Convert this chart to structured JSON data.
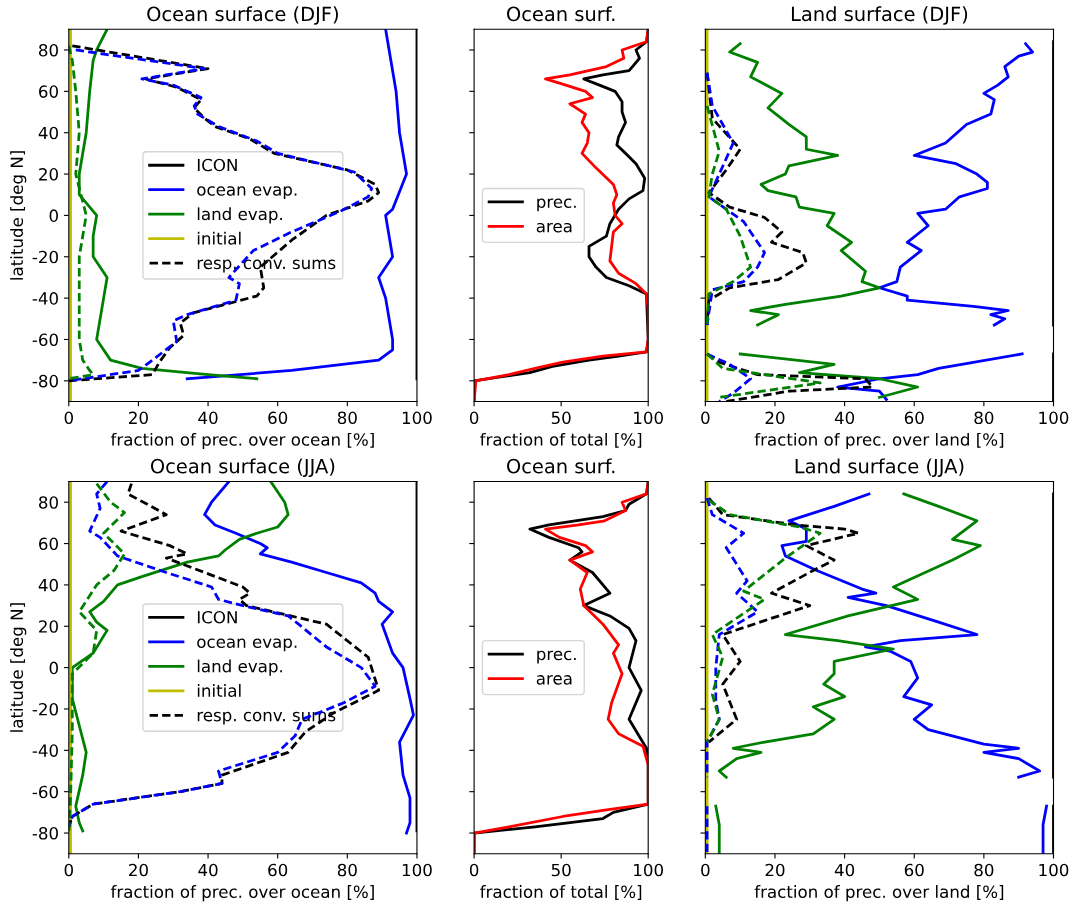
{
  "chart_data": [
    {
      "type": "line",
      "orientation": "horizontal",
      "title": "Ocean surface (DJF)",
      "xlabel": "fraction of prec. over ocean [%]",
      "ylabel": "latitude [deg N]",
      "xlim": [
        0,
        100
      ],
      "xticks": [
        0,
        20,
        40,
        60,
        80,
        100
      ],
      "ylim": [
        -90,
        90
      ],
      "yticks": [
        -80,
        -60,
        -40,
        -20,
        0,
        20,
        40,
        60,
        80
      ],
      "legend": "center",
      "series": [
        {
          "name": "ICON",
          "color": "#000000",
          "line_style": "solid",
          "x": [
            90,
            -79
          ],
          "values": [
            100,
            100
          ]
        },
        {
          "name": "ocean evap.",
          "color": "#0000ff",
          "line_style": "solid",
          "x": [
            90,
            80,
            60,
            40,
            20,
            3,
            0,
            -20,
            -30,
            -40,
            -50,
            -60,
            -65,
            -70,
            -75,
            -79
          ],
          "values": [
            91,
            92,
            94,
            95,
            97,
            93,
            91,
            93,
            89,
            91,
            92,
            93,
            93,
            89,
            64,
            34
          ]
        },
        {
          "name": "land evap.",
          "color": "#008000",
          "line_style": "solid",
          "x": [
            90,
            80,
            75,
            60,
            40,
            20,
            10,
            0,
            -10,
            -20,
            -30,
            -40,
            -60,
            -70,
            -74,
            -77,
            -79
          ],
          "values": [
            11,
            8,
            7,
            6,
            5,
            3,
            3,
            8,
            7,
            7,
            11,
            10,
            8,
            12,
            21,
            40,
            54
          ]
        },
        {
          "name": "initial",
          "color": "#bfbf00",
          "line_style": "solid",
          "x": [
            90,
            -90
          ],
          "values": [
            0.5,
            0.5
          ]
        },
        {
          "name": "resp. conv. sums",
          "color": "#000000",
          "line_style": "dashed",
          "x": [
            82,
            71,
            66,
            62,
            56,
            52,
            47,
            43,
            37,
            30,
            22,
            15,
            11,
            7,
            0,
            -12,
            -25,
            -35,
            -39,
            -47,
            -52,
            -58,
            -64,
            -71,
            -77,
            -80
          ],
          "values": [
            1,
            40,
            22,
            31,
            38,
            36,
            39,
            42,
            52,
            59,
            80,
            88,
            89,
            86,
            74,
            64,
            55,
            56,
            54,
            36,
            32,
            33,
            29,
            26,
            24,
            0
          ]
        },
        {
          "color": "#0000ff",
          "line_style": "dashed",
          "x": [
            80,
            71,
            66,
            63,
            57,
            53,
            49,
            43,
            36,
            30,
            21,
            13,
            9,
            2,
            -8,
            -17,
            -30,
            -33,
            -41,
            -48,
            -51,
            -61,
            -70,
            -75,
            -80
          ],
          "values": [
            2,
            39,
            21,
            30,
            38,
            36,
            37,
            43,
            54,
            60,
            82,
            87,
            86,
            78,
            64,
            53,
            46,
            49,
            48,
            34,
            30,
            31,
            24,
            20,
            0
          ]
        },
        {
          "color": "#008000",
          "line_style": "dashed",
          "x": [
            82,
            75,
            60,
            40,
            20,
            0,
            -20,
            -40,
            -60,
            -70,
            -75,
            -77,
            -79
          ],
          "values": [
            0,
            1,
            2,
            3,
            2,
            5,
            3,
            3,
            3,
            4,
            6,
            7,
            0
          ]
        }
      ]
    },
    {
      "type": "line",
      "orientation": "horizontal",
      "title": "Ocean surf.",
      "xlabel": "fraction of total [%]",
      "xlim": [
        0,
        100
      ],
      "xticks": [
        0,
        50,
        100
      ],
      "ylim": [
        -90,
        90
      ],
      "yticks": [
        -80,
        -60,
        -40,
        -20,
        0,
        20,
        40,
        60,
        80
      ],
      "tick_labels": "x",
      "legend": "center left",
      "series": [
        {
          "name": "prec.",
          "color": "#000000",
          "line_style": "solid",
          "x": [
            90,
            84,
            80,
            76,
            72,
            70,
            68,
            66,
            63,
            60,
            55,
            50,
            45,
            38,
            34,
            30,
            25,
            18,
            12,
            8,
            3,
            -4,
            -10,
            -15,
            -20,
            -25,
            -30,
            -34,
            -38,
            -60,
            -66,
            -68,
            -70,
            -73,
            -76,
            -78,
            -80,
            -90
          ],
          "values": [
            100,
            99,
            93,
            95,
            91,
            89,
            74,
            63,
            72,
            81,
            85,
            85,
            87,
            83,
            82,
            87,
            93,
            98,
            97,
            89,
            83,
            78,
            76,
            66,
            66,
            70,
            76,
            89,
            99,
            100,
            99,
            83,
            66,
            45,
            32,
            16,
            0,
            0
          ]
        },
        {
          "name": "area",
          "color": "#ff0000",
          "line_style": "solid",
          "x": [
            90,
            84,
            80,
            76,
            72,
            68,
            66,
            64,
            60,
            57,
            54,
            49,
            45,
            40,
            35,
            30,
            23,
            15,
            10,
            6,
            0,
            -4,
            -8,
            -15,
            -22,
            -28,
            -33,
            -38,
            -45,
            -60,
            -66,
            -68,
            -71,
            -74,
            -77,
            -80,
            -90
          ],
          "values": [
            100,
            99,
            85,
            86,
            76,
            55,
            41,
            49,
            64,
            68,
            55,
            64,
            62,
            66,
            65,
            62,
            70,
            80,
            82,
            80,
            81,
            85,
            80,
            79,
            78,
            83,
            93,
            99,
            100,
            100,
            99,
            74,
            51,
            35,
            20,
            1,
            0
          ]
        }
      ]
    },
    {
      "type": "line",
      "orientation": "horizontal",
      "title": "Land surface (DJF)",
      "xlabel": "fraction of prec. over land [%]",
      "xlim": [
        0,
        100
      ],
      "xticks": [
        0,
        20,
        40,
        60,
        80,
        100
      ],
      "ylim": [
        -90,
        90
      ],
      "yticks": [
        -80,
        -60,
        -40,
        -20,
        0,
        20,
        40,
        60,
        80
      ],
      "tick_labels": "x",
      "series": [
        {
          "color": "#000000",
          "line_style": "solid",
          "x": [
            84,
            -53,
            -60,
            -67,
            -90
          ],
          "values": [
            100,
            100,
            null,
            100,
            100
          ]
        },
        {
          "color": "#0000ff",
          "line_style": "solid",
          "x": [
            83,
            79,
            77,
            72,
            67,
            63,
            59,
            56,
            49,
            44,
            35,
            29,
            25,
            20,
            16,
            13,
            9,
            3,
            1,
            -5,
            -13,
            -17,
            -25,
            -32,
            -35,
            -39,
            -41,
            -44,
            -46,
            -48,
            -50,
            -53,
            -60,
            -67,
            -74,
            -77,
            -79,
            -83,
            -85,
            -89
          ],
          "values": [
            92,
            94,
            90,
            86,
            87,
            84,
            80,
            83,
            82,
            75,
            69,
            60,
            72,
            78,
            81,
            81,
            73,
            69,
            61,
            64,
            58,
            62,
            56,
            55,
            50,
            58,
            58,
            77,
            87,
            82,
            86,
            83,
            null,
            91,
            67,
            61,
            50,
            38,
            50,
            52
          ]
        },
        {
          "color": "#008000",
          "line_style": "solid",
          "x": [
            83,
            79,
            74,
            67,
            59,
            52,
            44,
            38,
            32,
            29,
            24,
            20,
            15,
            12,
            9,
            4,
            1,
            -5,
            -13,
            -17,
            -27,
            -32,
            -35,
            -39,
            -43,
            -46,
            -48,
            -53,
            -60,
            -67,
            -72,
            -76,
            -79,
            -83,
            -88
          ],
          "values": [
            10,
            7,
            15,
            13,
            22,
            18,
            24,
            29,
            29,
            38,
            24,
            23,
            16,
            18,
            26,
            27,
            37,
            35,
            42,
            39,
            46,
            45,
            50,
            39,
            23,
            13,
            21,
            15,
            null,
            10,
            37,
            27,
            50,
            61,
            50
          ]
        },
        {
          "color": "#bfbf00",
          "line_style": "solid",
          "x": [
            90,
            -90
          ],
          "values": [
            0.5,
            0.5
          ]
        },
        {
          "color": "#000000",
          "line_style": "dashed",
          "x": [
            69,
            47,
            32,
            22,
            11,
            4,
            -1,
            -8,
            -13,
            -18,
            -23,
            -31,
            -35,
            -41,
            -53,
            -60,
            -67,
            -71,
            -77,
            -79,
            -83,
            -85,
            -90
          ],
          "values": [
            0.5,
            2,
            10,
            6,
            1,
            7,
            17,
            22,
            19,
            28,
            29,
            21,
            7,
            1,
            0.5,
            null,
            0.5,
            4,
            15,
            46,
            48,
            24,
            6
          ]
        },
        {
          "color": "#0000ff",
          "line_style": "dashed",
          "x": [
            69,
            53,
            35,
            20,
            9,
            -3,
            -8,
            -18,
            -25,
            -32,
            -36,
            -53,
            -60,
            -67,
            -72,
            -79,
            -86,
            -90
          ],
          "values": [
            0.5,
            2,
            8,
            4,
            1,
            11,
            13,
            17,
            15,
            11,
            2,
            0.5,
            null,
            0.5,
            7,
            13,
            8,
            4
          ]
        },
        {
          "color": "#008000",
          "line_style": "dashed",
          "x": [
            53,
            31,
            20,
            9,
            3,
            -10,
            -25,
            -32,
            -38,
            -53,
            -60,
            -67,
            -74,
            -81,
            -88
          ],
          "values": [
            0.5,
            4,
            2,
            1,
            6,
            10,
            13,
            8,
            1,
            0.5,
            null,
            0.5,
            5,
            33,
            4
          ]
        }
      ]
    },
    {
      "type": "line",
      "orientation": "horizontal",
      "title": "Ocean surface (JJA)",
      "xlabel": "fraction of prec. over ocean [%]",
      "ylabel": "latitude [deg N]",
      "xlim": [
        0,
        100
      ],
      "xticks": [
        0,
        20,
        40,
        60,
        80,
        100
      ],
      "ylim": [
        -90,
        90
      ],
      "yticks": [
        -80,
        -60,
        -40,
        -20,
        0,
        20,
        40,
        60,
        80
      ],
      "legend": "center",
      "series": [
        {
          "name": "ICON",
          "color": "#000000",
          "line_style": "solid",
          "x": [
            90,
            -79
          ],
          "values": [
            100,
            100
          ]
        },
        {
          "name": "ocean evap.",
          "color": "#0000ff",
          "line_style": "solid",
          "x": [
            90,
            80,
            74,
            69,
            65,
            60,
            58,
            55,
            51,
            46,
            41,
            36,
            32,
            27,
            21,
            7,
            0,
            -15,
            -23,
            -36,
            -52,
            -63,
            -75,
            -80
          ],
          "values": [
            46,
            41,
            39,
            42,
            48,
            55,
            57,
            55,
            64,
            74,
            84,
            88,
            89,
            93,
            90,
            93,
            96,
            98,
            99,
            95,
            96,
            98,
            98,
            97
          ]
        },
        {
          "name": "land evap.",
          "color": "#008000",
          "line_style": "solid",
          "x": [
            90,
            80,
            74,
            68,
            65,
            62,
            57,
            54,
            51,
            44,
            40,
            32,
            27,
            22,
            18,
            7,
            0,
            -15,
            -28,
            -41,
            -52,
            -67,
            -75,
            -79
          ],
          "values": [
            58,
            62,
            63,
            60,
            54,
            49,
            45,
            43,
            34,
            21,
            14,
            10,
            6,
            8,
            11,
            7,
            1,
            1,
            3,
            5,
            4,
            2,
            3,
            4
          ]
        },
        {
          "name": "initial",
          "color": "#bfbf00",
          "line_style": "solid",
          "x": [
            90,
            -90
          ],
          "values": [
            0.5,
            0.5
          ]
        },
        {
          "name": "resp. conv. sums",
          "color": "#000000",
          "line_style": "dashed",
          "x": [
            89,
            84,
            74,
            66,
            59,
            55,
            53,
            46,
            39,
            36,
            33,
            30,
            21,
            5,
            -11,
            -22,
            -31,
            -41,
            -52,
            -56,
            -60,
            -66,
            -72,
            -77
          ],
          "values": [
            18,
            17,
            28,
            15,
            29,
            34,
            28,
            39,
            50,
            52,
            49,
            51,
            74,
            86,
            89,
            76,
            68,
            63,
            44,
            44,
            32,
            7,
            1,
            0
          ]
        },
        {
          "color": "#0000ff",
          "line_style": "dashed",
          "x": [
            90,
            84,
            77,
            66,
            63,
            54,
            46,
            39,
            33,
            30,
            25,
            21,
            10,
            0,
            -9,
            -17,
            -25,
            -33,
            -41,
            -50,
            -56,
            -60,
            -66,
            -72,
            -77
          ],
          "values": [
            11,
            8,
            9,
            6,
            9,
            14,
            28,
            41,
            43,
            50,
            63,
            66,
            74,
            84,
            88,
            79,
            67,
            65,
            60,
            43,
            44,
            32,
            7,
            1,
            0
          ]
        },
        {
          "color": "#008000",
          "line_style": "dashed",
          "x": [
            89,
            80,
            75,
            65,
            55,
            47,
            40,
            27,
            18,
            7,
            -3,
            -31,
            -63,
            -80
          ],
          "values": [
            8,
            12,
            16,
            10,
            16,
            13,
            8,
            3,
            8,
            7,
            1,
            1,
            0.5,
            0
          ]
        }
      ]
    },
    {
      "type": "line",
      "orientation": "horizontal",
      "title": "Ocean surf.",
      "xlabel": "fraction of total [%]",
      "xlim": [
        0,
        100
      ],
      "xticks": [
        0,
        50,
        100
      ],
      "ylim": [
        -90,
        90
      ],
      "yticks": [
        -80,
        -60,
        -40,
        -20,
        0,
        20,
        40,
        60,
        80
      ],
      "tick_labels": "x",
      "legend": "center left",
      "series": [
        {
          "name": "prec.",
          "color": "#000000",
          "line_style": "solid",
          "x": [
            90,
            84,
            79,
            76,
            73,
            69,
            67,
            63,
            58,
            56,
            52,
            46,
            36,
            30,
            25,
            19,
            13,
            0,
            -11,
            -25,
            -39,
            -47,
            -66,
            -70,
            -73,
            -77,
            -80,
            -90
          ],
          "values": [
            100,
            99,
            89,
            87,
            74,
            43,
            32,
            43,
            60,
            62,
            55,
            68,
            78,
            63,
            78,
            89,
            93,
            89,
            96,
            89,
            99,
            100,
            100,
            80,
            74,
            35,
            0,
            0
          ]
        },
        {
          "name": "area",
          "color": "#ff0000",
          "line_style": "solid",
          "x": [
            90,
            84,
            80,
            76,
            71,
            69,
            67,
            63,
            59,
            56,
            52,
            46,
            38,
            30,
            21,
            11,
            7,
            -3,
            -17,
            -25,
            -32,
            -38,
            -47,
            -66,
            -69,
            -72,
            -77,
            -80,
            -90
          ],
          "values": [
            100,
            99,
            85,
            87,
            75,
            60,
            41,
            49,
            64,
            68,
            55,
            65,
            61,
            63,
            74,
            83,
            80,
            85,
            79,
            77,
            83,
            97,
            100,
            100,
            74,
            51,
            20,
            0,
            0
          ]
        }
      ]
    },
    {
      "type": "line",
      "orientation": "horizontal",
      "title": "Land surface (JJA)",
      "xlabel": "fraction of prec. over land [%]",
      "xlim": [
        0,
        100
      ],
      "xticks": [
        0,
        20,
        40,
        60,
        80,
        100
      ],
      "ylim": [
        -90,
        90
      ],
      "yticks": [
        -80,
        -60,
        -40,
        -20,
        0,
        20,
        40,
        60,
        80
      ],
      "tick_labels": "x",
      "series": [
        {
          "color": "#000000",
          "line_style": "solid",
          "x": [
            84,
            -53,
            -60,
            -67,
            -90
          ],
          "values": [
            100,
            100,
            null,
            100,
            100
          ]
        },
        {
          "color": "#0000ff",
          "line_style": "solid",
          "x": [
            84,
            78,
            71,
            67,
            61,
            59,
            54,
            47,
            38,
            36,
            34,
            30,
            22,
            16,
            13,
            10,
            8,
            3,
            -5,
            -14,
            -18,
            -25,
            -30,
            -37,
            -39,
            -41,
            -44,
            -50,
            -53,
            -60,
            -67,
            -76,
            -90
          ],
          "values": [
            47,
            37,
            24,
            29,
            29,
            22,
            23,
            32,
            45,
            49,
            41,
            52,
            67,
            78,
            56,
            46,
            53,
            59,
            61,
            57,
            65,
            60,
            64,
            80,
            90,
            80,
            90,
            96,
            90,
            null,
            98,
            97,
            97
          ]
        },
        {
          "color": "#008000",
          "line_style": "solid",
          "x": [
            84,
            78,
            71,
            62,
            59,
            52,
            39,
            33,
            25,
            16,
            13,
            9,
            3,
            -3,
            -8,
            -14,
            -19,
            -25,
            -32,
            -36,
            -39,
            -41,
            -44,
            -50,
            -53,
            -60,
            -67,
            -76,
            -90
          ],
          "values": [
            57,
            67,
            78,
            71,
            79,
            71,
            54,
            61,
            41,
            23,
            38,
            54,
            37,
            37,
            34,
            40,
            31,
            37,
            31,
            17,
            8,
            16,
            9,
            4,
            6,
            null,
            3,
            4,
            4
          ]
        },
        {
          "color": "#bfbf00",
          "line_style": "solid",
          "x": [
            90,
            -90
          ],
          "values": [
            0.5,
            0.5
          ]
        },
        {
          "color": "#000000",
          "line_style": "dashed",
          "x": [
            82,
            74,
            69,
            67,
            65,
            59,
            52,
            47,
            36,
            30,
            16,
            3,
            -8,
            -25,
            -36
          ],
          "values": [
            1,
            5,
            26,
            40,
            44,
            29,
            37,
            31,
            19,
            30,
            5,
            10,
            5,
            9,
            1
          ]
        },
        {
          "color": "#0000ff",
          "line_style": "dashed",
          "x": [
            82,
            74,
            65,
            58,
            42,
            36,
            27,
            16,
            0,
            -16,
            -25,
            -36,
            -53,
            -60,
            -67,
            -90
          ],
          "values": [
            0.5,
            2,
            11,
            6,
            12,
            9,
            15,
            4,
            3,
            3,
            4,
            0.5,
            0.5,
            null,
            0.5,
            0.5
          ]
        },
        {
          "color": "#008000",
          "line_style": "dashed",
          "x": [
            81,
            74,
            68,
            65,
            53,
            37,
            33,
            16,
            5,
            -13,
            -25,
            -36
          ],
          "values": [
            1,
            7,
            27,
            33,
            23,
            11,
            17,
            2,
            5,
            2,
            4,
            0.5
          ]
        }
      ]
    }
  ]
}
